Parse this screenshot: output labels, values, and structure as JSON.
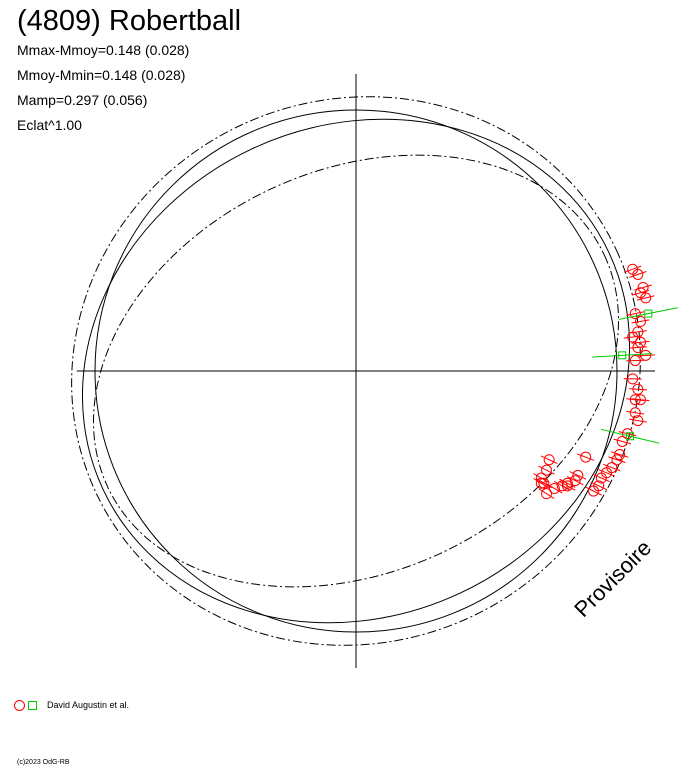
{
  "header": {
    "title": "(4809) Robertball",
    "stats": [
      "Mmax-Mmoy=0.148 (0.028)",
      "Mmoy-Mmin=0.148 (0.028)",
      "Mamp=0.297 (0.056)",
      "Eclat^1.00"
    ]
  },
  "legend": {
    "label": "David Augustin et al."
  },
  "watermark": "Provisoire",
  "copyright": "(c)2023 OdG-RB",
  "colors": {
    "observations": "#ff0000",
    "observations_alt": "#00cc00",
    "curves": "#000000"
  },
  "chart_data": {
    "type": "scatter",
    "title": "(4809) Robertball",
    "xlabel": "",
    "ylabel": "",
    "xlim": [
      -1.07,
      1.17
    ],
    "ylim": [
      -1.17,
      1.17
    ],
    "grid": false,
    "legend_position": "bottom-left",
    "reference_curves": [
      {
        "style": "solid",
        "rx": 1.0,
        "ry": 1.0
      },
      {
        "style": "solid",
        "rx": 1.07,
        "ry": 0.94,
        "rotation_deg": -25
      },
      {
        "style": "dash-dot",
        "rx": 1.1,
        "ry": 1.04,
        "rotation_deg": -25
      },
      {
        "style": "dash-dot",
        "rx": 1.05,
        "ry": 0.77,
        "rotation_deg": -25
      }
    ],
    "series": [
      {
        "name": "David Augustin et al.",
        "marker": "circle",
        "color": "#ff0000",
        "points": [
          [
            1.06,
            0.39
          ],
          [
            1.08,
            0.37
          ],
          [
            1.09,
            0.3
          ],
          [
            1.11,
            0.28
          ],
          [
            1.1,
            0.32
          ],
          [
            1.07,
            0.22
          ],
          [
            1.09,
            0.19
          ],
          [
            1.08,
            0.15
          ],
          [
            1.06,
            0.13
          ],
          [
            1.09,
            0.11
          ],
          [
            1.08,
            0.09
          ],
          [
            1.11,
            0.06
          ],
          [
            1.07,
            0.04
          ],
          [
            1.06,
            -0.03
          ],
          [
            1.08,
            -0.07
          ],
          [
            1.07,
            -0.11
          ],
          [
            1.09,
            -0.11
          ],
          [
            1.07,
            -0.16
          ],
          [
            1.08,
            -0.19
          ],
          [
            1.04,
            -0.24
          ],
          [
            1.02,
            -0.27
          ],
          [
            1.01,
            -0.32
          ],
          [
            1.0,
            -0.34
          ],
          [
            0.98,
            -0.37
          ],
          [
            0.96,
            -0.39
          ],
          [
            0.94,
            -0.41
          ],
          [
            0.93,
            -0.44
          ],
          [
            0.91,
            -0.46
          ],
          [
            0.85,
            -0.4
          ],
          [
            0.84,
            -0.42
          ],
          [
            0.81,
            -0.43
          ],
          [
            0.81,
            -0.44
          ],
          [
            0.79,
            -0.44
          ],
          [
            0.76,
            -0.45
          ],
          [
            0.73,
            -0.47
          ],
          [
            0.71,
            -0.43
          ],
          [
            0.71,
            -0.41
          ],
          [
            0.74,
            -0.34
          ],
          [
            0.73,
            -0.38
          ],
          [
            0.72,
            -0.43
          ],
          [
            0.88,
            -0.33
          ]
        ]
      },
      {
        "name": "David Augustin et al.",
        "marker": "square",
        "color": "#00cc00",
        "points": [
          [
            1.12,
            0.22
          ],
          [
            1.02,
            0.06
          ],
          [
            1.05,
            -0.25
          ]
        ]
      }
    ]
  }
}
